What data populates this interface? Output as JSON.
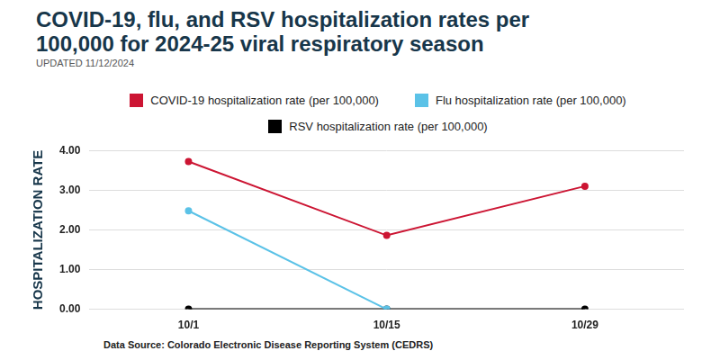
{
  "chart_data": {
    "type": "line",
    "title": "COVID-19, flu, and RSV hospitalization rates per 100,000 for 2024-25 viral respiratory season",
    "subtitle": "UPDATED 11/12/2024",
    "y_label": "HOSPITALIZATION RATE",
    "source": "Data Source: Colorado Electronic Disease Reporting System (CEDRS)",
    "categories": [
      "10/1",
      "10/15",
      "10/29"
    ],
    "series": [
      {
        "name": "COVID-19 hospitalization rate (per 100,000)",
        "color": "#cc1533",
        "values": [
          3.72,
          1.86,
          3.1
        ]
      },
      {
        "name": "Flu hospitalization rate (per 100,000)",
        "color": "#5bc2e7",
        "values": [
          2.48,
          0,
          null
        ]
      },
      {
        "name": "RSV hospitalization rate (per 100,000)",
        "color": "#000000",
        "values": [
          0,
          0,
          0
        ]
      }
    ],
    "ylim": [
      0,
      4
    ],
    "yticks": [
      {
        "value": 0,
        "label": "0.00"
      },
      {
        "value": 1,
        "label": "1.00"
      },
      {
        "value": 2,
        "label": "2.00"
      },
      {
        "value": 3,
        "label": "3.00"
      },
      {
        "value": 4,
        "label": "4.00"
      }
    ],
    "grid": true,
    "legend": "top",
    "marker": "circle"
  }
}
